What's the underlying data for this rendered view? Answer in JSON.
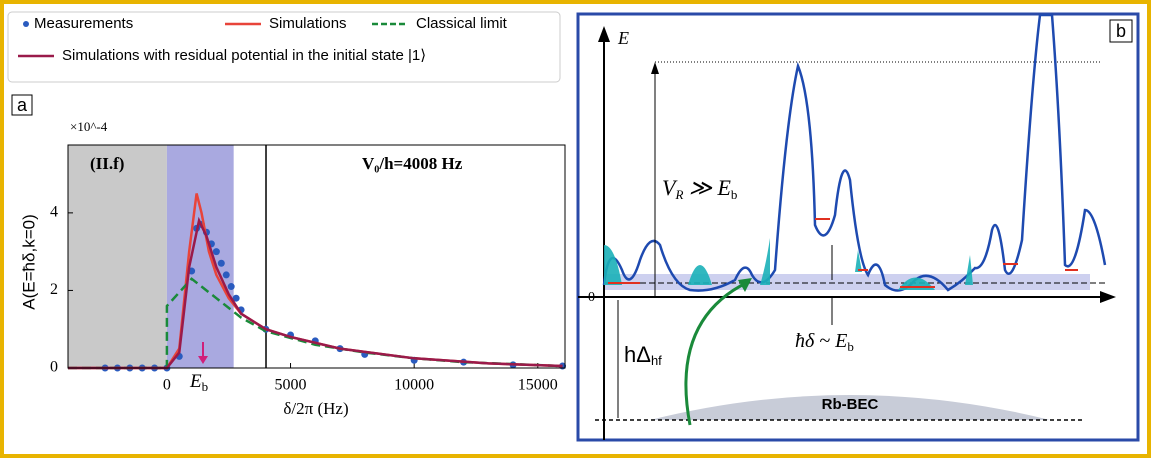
{
  "chart_data": {
    "type": "line",
    "panel_label": "a",
    "y_label": "A(E=ħδ,k=0)",
    "x_label": "δ/2π (Hz)",
    "y_multiplier": "×10^-4",
    "region_label": "(II.f)",
    "annotation": "V₀/h=4008 Hz",
    "eb_label": {
      "symbol": "E",
      "sub": "b"
    },
    "xlim": [
      -4000,
      16100
    ],
    "ylim": [
      0,
      5.75
    ],
    "xticks": [
      0,
      5000,
      10000,
      15000
    ],
    "yticks": [
      0,
      2,
      4
    ],
    "bands": [
      {
        "range": [
          -4000,
          0
        ],
        "color": "#c9c9c9"
      },
      {
        "range": [
          0,
          2700
        ],
        "color": "#a9a9e0"
      }
    ],
    "vline": 4008,
    "series": [
      {
        "name": "Measurements",
        "color": "#2a5bbf",
        "mode": "scatter",
        "x": [
          -2500,
          -2000,
          -1500,
          -1000,
          -500,
          0,
          500,
          1000,
          1200,
          1400,
          1600,
          1800,
          2000,
          2200,
          2400,
          2600,
          2800,
          3000,
          4000,
          5000,
          6000,
          7000,
          8000,
          10000,
          12000,
          14000,
          16000
        ],
        "values": [
          0,
          0,
          0,
          0,
          0,
          0,
          0.3,
          2.5,
          3.6,
          3.7,
          3.5,
          3.2,
          3.0,
          2.7,
          2.4,
          2.1,
          1.8,
          1.5,
          1.0,
          0.85,
          0.7,
          0.5,
          0.35,
          0.2,
          0.15,
          0.08,
          0.05
        ]
      },
      {
        "name": "Simulations",
        "color": "#e8443a",
        "mode": "line",
        "x": [
          -4000,
          0,
          500,
          900,
          1200,
          1400,
          1700,
          2000,
          2500,
          3000,
          4000,
          5000,
          7000,
          10000,
          13000,
          16000
        ],
        "values": [
          0,
          0,
          0.5,
          3.0,
          4.5,
          4.0,
          3.0,
          2.4,
          1.8,
          1.4,
          1.0,
          0.8,
          0.5,
          0.25,
          0.12,
          0.05
        ]
      },
      {
        "name": "Classical limit",
        "color": "#1a8a3a",
        "mode": "dashed",
        "x": [
          -4000,
          0,
          0,
          1000,
          2000,
          3000,
          4000,
          6000,
          8000,
          10000,
          12000,
          14000,
          16000
        ],
        "values": [
          0,
          0,
          1.6,
          2.3,
          1.8,
          1.3,
          0.95,
          0.6,
          0.4,
          0.25,
          0.15,
          0.1,
          0.05
        ]
      },
      {
        "name": "Simulations with residual potential in the initial state |1⟩",
        "color": "#9a1a4a",
        "mode": "line",
        "x": [
          -4000,
          0,
          500,
          900,
          1300,
          1600,
          2000,
          2500,
          3000,
          4000,
          5000,
          7000,
          10000,
          13000,
          16000
        ],
        "values": [
          0,
          0,
          0.4,
          2.6,
          3.8,
          3.4,
          2.6,
          1.9,
          1.4,
          1.0,
          0.8,
          0.5,
          0.25,
          0.12,
          0.05
        ]
      }
    ]
  },
  "panel_b": {
    "label": "b",
    "energy_axis": "E",
    "zero": "0",
    "vr_label": [
      "V",
      "R",
      " ≫ E",
      "b"
    ],
    "hd_label": [
      "ħδ ~ E",
      "b"
    ],
    "hf_label": [
      "hΔ",
      "hf"
    ],
    "bec": "Rb-BEC"
  }
}
